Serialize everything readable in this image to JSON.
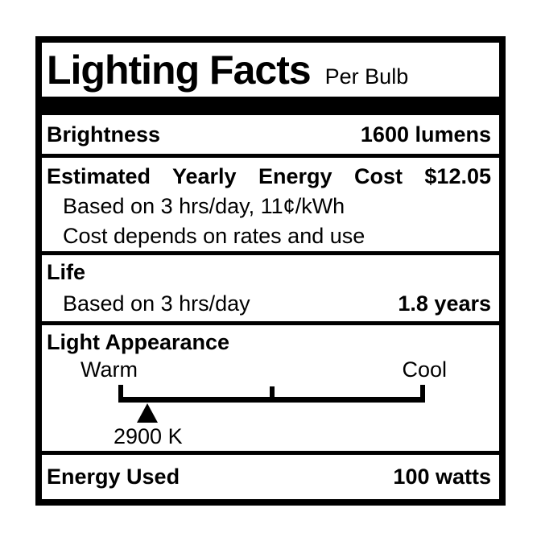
{
  "label": {
    "title": "Lighting Facts",
    "subtitle": "Per Bulb",
    "brightness": {
      "label": "Brightness",
      "value": "1600 lumens"
    },
    "energy_cost": {
      "heading_line": "Estimated Yearly Energy Cost $12.05",
      "label": "Estimated Yearly Energy Cost",
      "value": "$12.05",
      "note_line1": "Based on 3 hrs/day, 11¢/kWh",
      "note_line2": "Cost depends on rates and use"
    },
    "life": {
      "label": "Life",
      "note": "Based on 3 hrs/day",
      "value": "1.8 years"
    },
    "light_appearance": {
      "label": "Light Appearance",
      "warm_label": "Warm",
      "cool_label": "Cool",
      "kelvin_value": "2900 K",
      "marker_left_percent": "9.4%"
    },
    "energy_used": {
      "label": "Energy Used",
      "value": "100 watts"
    }
  },
  "colors": {
    "ink": "#000000",
    "background": "#ffffff"
  }
}
